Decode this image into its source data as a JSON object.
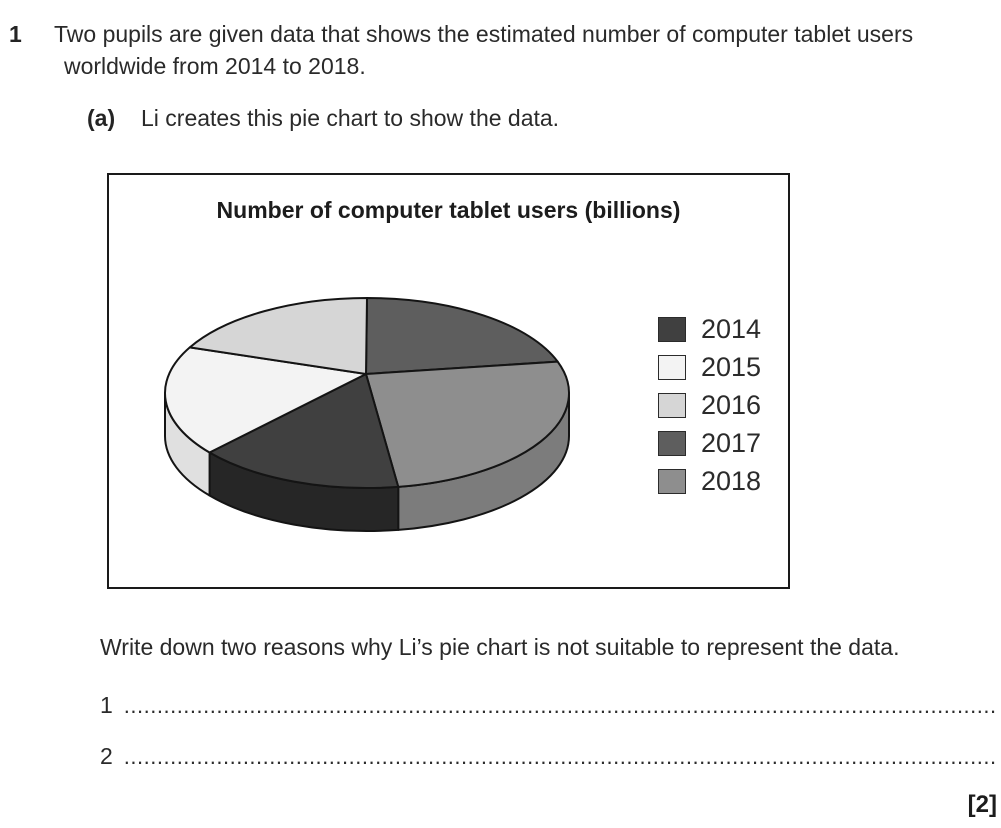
{
  "document": {
    "question_number": "1",
    "intro_line1": "Two pupils are given data that shows the estimated number of computer tablet users",
    "intro_line2": "worldwide from 2014 to 2018.",
    "part_label": "(a)",
    "part_text": "Li creates this pie chart to show the data.",
    "prompt": "Write down two reasons why Li’s pie chart is not suitable to represent the data.",
    "answer_line_1_label": "1",
    "answer_line_2_label": "2",
    "marks": "[2]"
  },
  "chart_data": {
    "type": "pie",
    "style": "3d",
    "title": "Number of computer tablet users (billions)",
    "values_labeled": false,
    "grid": false,
    "legend_position": "right",
    "legend": [
      {
        "label": "2014",
        "color": "#404040"
      },
      {
        "label": "2015",
        "color": "#f3f3f3"
      },
      {
        "label": "2016",
        "color": "#d6d6d6"
      },
      {
        "label": "2017",
        "color": "#5e5e5e"
      },
      {
        "label": "2018",
        "color": "#8e8e8e"
      }
    ],
    "segments_clockwise_from_top": [
      {
        "label": "2017",
        "angle_deg": 70.7,
        "percent_est": 19.6,
        "color": "#5e5e5e",
        "side_color": "#4a4a4a"
      },
      {
        "label": "2018",
        "angle_deg": 100.4,
        "percent_est": 27.9,
        "color": "#8e8e8e",
        "side_color": "#7c7c7c"
      },
      {
        "label": "2014",
        "angle_deg": 60.1,
        "percent_est": 16.7,
        "color": "#404040",
        "side_color": "#262626"
      },
      {
        "label": "2015",
        "angle_deg": 67.5,
        "percent_est": 18.8,
        "color": "#f3f3f3",
        "side_color": "#e0e0e0"
      },
      {
        "label": "2016",
        "angle_deg": 61.3,
        "percent_est": 17.0,
        "color": "#d6d6d6",
        "side_color": "#c0c0c0"
      }
    ]
  }
}
